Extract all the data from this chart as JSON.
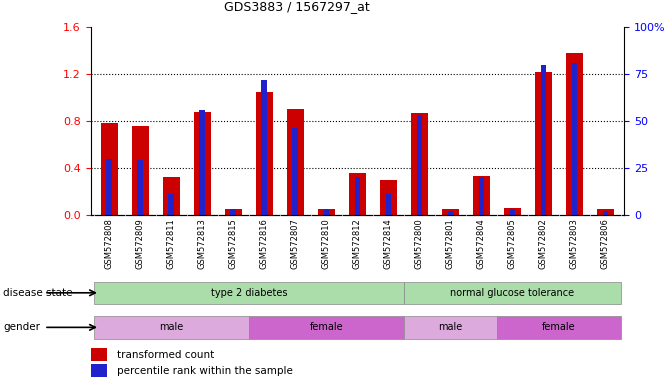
{
  "title": "GDS3883 / 1567297_at",
  "samples": [
    "GSM572808",
    "GSM572809",
    "GSM572811",
    "GSM572813",
    "GSM572815",
    "GSM572816",
    "GSM572807",
    "GSM572810",
    "GSM572812",
    "GSM572814",
    "GSM572800",
    "GSM572801",
    "GSM572804",
    "GSM572805",
    "GSM572802",
    "GSM572803",
    "GSM572806"
  ],
  "transformed_count": [
    0.78,
    0.76,
    0.32,
    0.88,
    0.05,
    1.05,
    0.9,
    0.05,
    0.36,
    0.3,
    0.87,
    0.05,
    0.33,
    0.06,
    1.22,
    1.38,
    0.05
  ],
  "percentile_rank_pct": [
    30,
    29,
    11,
    56,
    3,
    72,
    46,
    3,
    20,
    11,
    53,
    2,
    20,
    3,
    80,
    81,
    2
  ],
  "ylim_left": [
    0,
    1.6
  ],
  "ylim_right": [
    0,
    100
  ],
  "yticks_left": [
    0,
    0.4,
    0.8,
    1.2,
    1.6
  ],
  "yticks_right": [
    0,
    25,
    50,
    75,
    100
  ],
  "bar_color_red": "#cc0000",
  "bar_color_blue": "#2222cc",
  "disease_state_groups": [
    {
      "label": "type 2 diabetes",
      "start": 0,
      "end": 10,
      "color": "#aaddaa"
    },
    {
      "label": "normal glucose tolerance",
      "start": 10,
      "end": 17,
      "color": "#aaddaa"
    }
  ],
  "gender_groups": [
    {
      "label": "male",
      "start": 0,
      "end": 5,
      "color": "#ddaadd"
    },
    {
      "label": "female",
      "start": 5,
      "end": 10,
      "color": "#cc66cc"
    },
    {
      "label": "male",
      "start": 10,
      "end": 13,
      "color": "#ddaadd"
    },
    {
      "label": "female",
      "start": 13,
      "end": 17,
      "color": "#cc66cc"
    }
  ],
  "legend_red_label": "transformed count",
  "legend_blue_label": "percentile rank within the sample",
  "disease_label": "disease state",
  "gender_label": "gender",
  "background_color": "#ffffff",
  "xtick_bg": "#dddddd",
  "red_bar_width": 0.55,
  "blue_bar_width": 0.18
}
